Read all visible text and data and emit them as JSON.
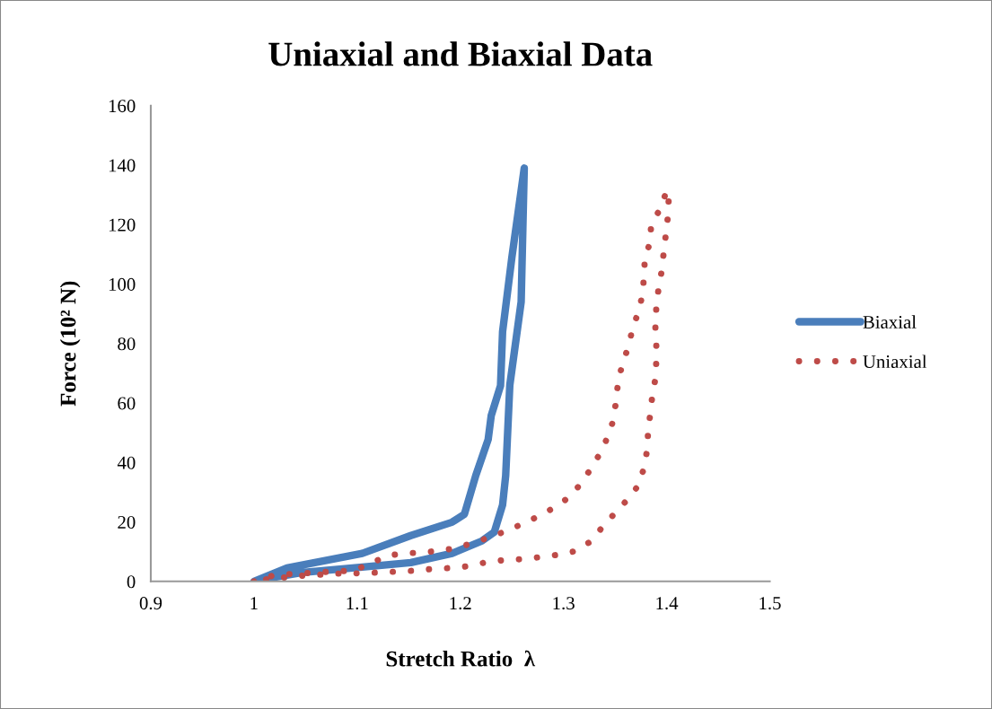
{
  "chart_data": {
    "type": "line",
    "title": "Uniaxial and Biaxial Data",
    "xlabel": "Stretch Ratio  λ",
    "ylabel": "Force (10² N)",
    "xlim": [
      0.9,
      1.5
    ],
    "xticks": [
      0.9,
      1,
      1.1,
      1.2,
      1.3,
      1.4,
      1.5
    ],
    "ylim": [
      0,
      160
    ],
    "yticks": [
      0,
      20,
      40,
      60,
      80,
      100,
      120,
      140,
      160
    ],
    "grid": false,
    "legend": "right",
    "marker": "none",
    "series": [
      {
        "name": "Biaxial",
        "color": "#4a7ebb",
        "line_style": "solid",
        "x": [
          1.0,
          1.032,
          1.105,
          1.152,
          1.192,
          1.204,
          1.215,
          1.227,
          1.23,
          1.239,
          1.241,
          1.25,
          1.256,
          1.262,
          1.259,
          1.248,
          1.244,
          1.241,
          1.233,
          1.221,
          1.192,
          1.152,
          1.105,
          1.047,
          1.005
        ],
        "values": [
          0,
          4.5,
          9.4,
          15.4,
          19.9,
          22.6,
          35.6,
          47.7,
          55.8,
          65.8,
          84,
          109,
          124,
          139,
          94,
          66,
          35.6,
          25.7,
          16.6,
          13.6,
          9.4,
          6.3,
          4.8,
          3,
          0.5
        ]
      },
      {
        "name": "Uniaxial",
        "color": "#be4b48",
        "line_style": "dotted",
        "x": [
          1.0,
          1.017,
          1.034,
          1.06,
          1.095,
          1.112,
          1.128,
          1.145,
          1.162,
          1.18,
          1.196,
          1.213,
          1.23,
          1.246,
          1.262,
          1.278,
          1.294,
          1.308,
          1.318,
          1.328,
          1.337,
          1.344,
          1.349,
          1.351,
          1.353,
          1.357,
          1.363,
          1.367,
          1.373,
          1.377,
          1.378,
          1.379,
          1.384,
          1.385,
          1.395,
          1.4,
          1.402,
          1.401,
          1.399,
          1.397,
          1.395,
          1.392,
          1.39,
          1.389,
          1.39,
          1.39,
          1.389,
          1.386,
          1.384,
          1.382,
          1.381,
          1.378,
          1.372,
          1.362,
          1.35,
          1.338,
          1.327,
          1.313,
          1.296,
          1.278,
          1.261,
          1.244,
          1.227,
          1.208,
          1.191,
          1.173,
          1.156,
          1.139,
          1.121,
          1.104,
          1.086,
          1.05,
          1.02,
          1.005
        ],
        "values": [
          0,
          1.8,
          2.4,
          3,
          3.6,
          5.7,
          8.6,
          9.4,
          9.7,
          10.3,
          11.2,
          13,
          15,
          17.2,
          19.6,
          22.3,
          25.4,
          29,
          33.5,
          38.6,
          44,
          49.5,
          55,
          61,
          67,
          73,
          79,
          85,
          91,
          97,
          103,
          109,
          114,
          120,
          126,
          131.6,
          128.3,
          122,
          116,
          110,
          104,
          98,
          92,
          86,
          80,
          74,
          68,
          62,
          56,
          50,
          44,
          38,
          32,
          27.5,
          23,
          18.4,
          13.6,
          10.3,
          9,
          8.2,
          7.5,
          7.2,
          6.6,
          5.1,
          4.5,
          4.2,
          3.6,
          3.3,
          3,
          2.7,
          2.7,
          2,
          1,
          0.4
        ]
      }
    ]
  }
}
